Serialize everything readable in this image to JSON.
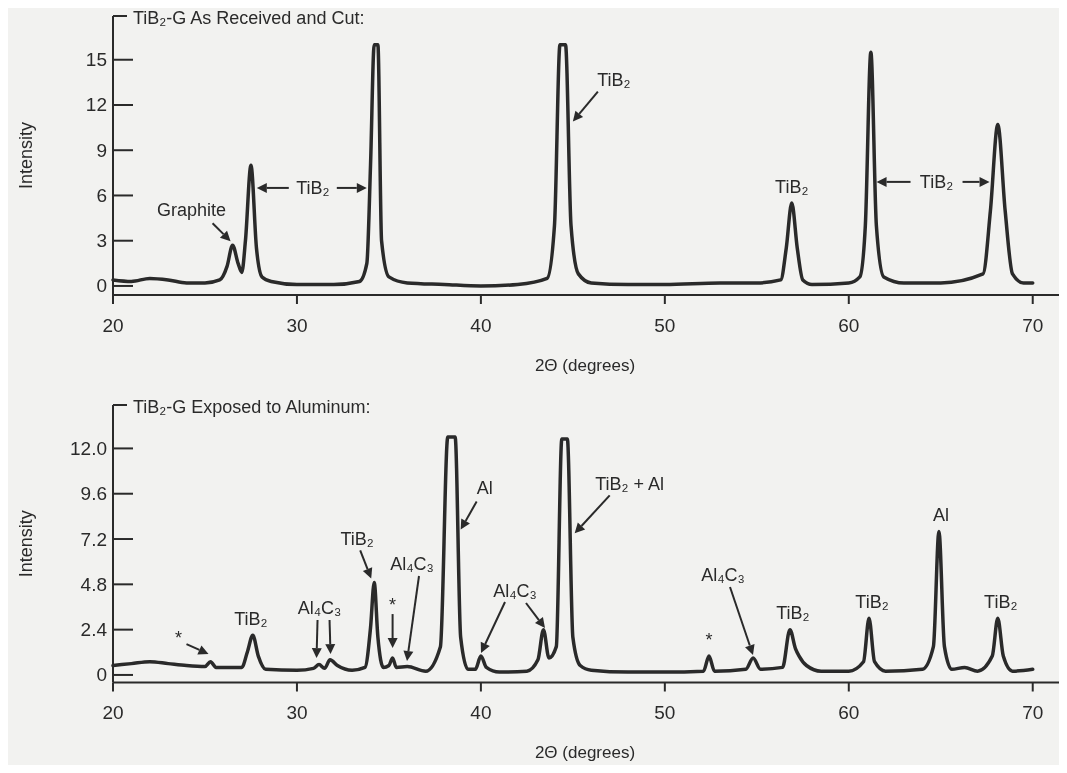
{
  "chart_data": [
    {
      "type": "line",
      "title": "TiB₂-G As Received and Cut:",
      "xlabel": "2Θ (degrees)",
      "ylabel": "Intensity",
      "xlim": [
        20,
        71.7
      ],
      "ylim": [
        -0.6,
        17.9
      ],
      "xticks": [
        20,
        30,
        40,
        50,
        60,
        70
      ],
      "yticks": [
        0,
        3,
        6,
        9,
        12,
        15
      ],
      "series": [
        {
          "color": "#2a2a2a",
          "x": [
            20,
            21,
            22,
            23,
            24,
            25,
            25.8,
            26.2,
            26.5,
            26.8,
            27.0,
            27.2,
            27.5,
            27.8,
            28.1,
            28.6,
            30,
            32,
            33.4,
            33.8,
            34.0,
            34.2,
            34.4,
            34.6,
            35.0,
            36,
            38,
            40,
            42,
            43.6,
            44.0,
            44.3,
            44.6,
            44.9,
            45.3,
            46,
            48,
            50,
            53,
            55,
            56.3,
            56.6,
            56.9,
            57.2,
            57.5,
            58,
            60,
            60.6,
            60.9,
            61.2,
            61.5,
            61.9,
            63,
            65,
            67.3,
            67.7,
            68.1,
            68.5,
            68.9,
            69.5,
            70
          ],
          "values": [
            0.4,
            0.3,
            0.5,
            0.4,
            0.2,
            0.2,
            0.4,
            1.3,
            2.7,
            1.5,
            0.9,
            3,
            8,
            2.5,
            0.6,
            0.3,
            0.1,
            0.1,
            0.3,
            1.5,
            8,
            16,
            16,
            3,
            0.6,
            0.2,
            0.1,
            0,
            0.1,
            0.5,
            4,
            16,
            16,
            4,
            0.8,
            0.2,
            0.1,
            0.1,
            0.2,
            0.2,
            0.4,
            2.5,
            5.5,
            2.5,
            0.4,
            0.1,
            0.2,
            0.6,
            4,
            15.5,
            4,
            0.6,
            0.2,
            0.2,
            0.8,
            5,
            10.7,
            5,
            0.8,
            0.2,
            0.2
          ]
        }
      ],
      "annotations": [
        {
          "text": "Graphite",
          "x": 26.5,
          "y": 2.7
        },
        {
          "text": "TiB₂",
          "x": 27.6,
          "y": 6.5
        },
        {
          "text": "TiB₂",
          "x": 45.0,
          "y": 10.9
        },
        {
          "text": "TiB₂",
          "x": 56.9,
          "y": 5.5
        },
        {
          "text": "TiB₂",
          "x": 61.4,
          "y": 6.9
        }
      ]
    },
    {
      "type": "line",
      "title": "TiB₂-G Exposed to Aluminum:",
      "xlabel": "2Θ (degrees)",
      "ylabel": "Intensity",
      "xlim": [
        20,
        71.7
      ],
      "ylim": [
        -0.4,
        14.3
      ],
      "xticks": [
        20,
        30,
        40,
        50,
        60,
        70
      ],
      "yticks": [
        0,
        2.4,
        4.8,
        7.2,
        9.6,
        {
          "value": 12,
          "label": "12.0"
        }
      ],
      "series": [
        {
          "color": "#2a2a2a",
          "x": [
            20,
            21,
            22,
            23,
            24,
            25,
            25.3,
            25.6,
            27,
            27.3,
            27.6,
            27.9,
            28.3,
            30,
            30.9,
            31.2,
            31.5,
            31.8,
            32.2,
            33,
            33.7,
            34.0,
            34.2,
            34.4,
            34.7,
            35.0,
            35.2,
            35.4,
            36.0,
            37,
            37.8,
            38.2,
            38.4,
            38.6,
            38.9,
            39.3,
            39.7,
            40.0,
            40.3,
            41,
            42.5,
            43.1,
            43.4,
            43.7,
            44.1,
            44.4,
            44.7,
            45.0,
            45.4,
            46,
            48,
            50,
            52.1,
            52.4,
            52.7,
            54.4,
            54.8,
            55.2,
            56.4,
            56.8,
            57.1,
            57.3,
            57.7,
            58.5,
            60,
            60.8,
            61.1,
            61.4,
            62,
            64,
            64.6,
            64.9,
            65.2,
            65.6,
            66.3,
            67,
            67.8,
            68.1,
            68.4,
            68.9,
            70
          ],
          "values": [
            0.5,
            0.6,
            0.7,
            0.6,
            0.5,
            0.45,
            0.7,
            0.4,
            0.4,
            1.2,
            2.1,
            1.0,
            0.3,
            0.25,
            0.35,
            0.55,
            0.35,
            0.8,
            0.5,
            0.25,
            0.4,
            2.5,
            4.9,
            2.0,
            0.4,
            0.5,
            0.9,
            0.4,
            0.45,
            0.2,
            1.5,
            12.6,
            12.6,
            12.6,
            2,
            0.3,
            0.3,
            1.0,
            0.4,
            0.15,
            0.2,
            0.8,
            2.4,
            0.9,
            1.5,
            12.5,
            12.5,
            2,
            0.5,
            0.25,
            0.15,
            0.15,
            0.2,
            1.0,
            0.2,
            0.3,
            0.9,
            0.3,
            0.4,
            2.4,
            1.4,
            1.0,
            0.5,
            0.2,
            0.2,
            0.7,
            3.0,
            0.7,
            0.2,
            0.3,
            1.5,
            7.6,
            1.5,
            0.3,
            0.4,
            0.2,
            1.0,
            3.0,
            1.0,
            0.2,
            0.3
          ]
        }
      ],
      "annotations": [
        {
          "text": "*",
          "x": 25.3,
          "y": 1.0
        },
        {
          "text": "TiB₂",
          "x": 27.6,
          "y": 2.1
        },
        {
          "text": "Al₄C₃",
          "x": 31.5,
          "y": 1.0
        },
        {
          "text": "TiB₂",
          "x": 34.2,
          "y": 4.9
        },
        {
          "text": "*",
          "x": 35.2,
          "y": 1.0
        },
        "Al₄C₃",
        {
          "text": "Al",
          "x": 38.9,
          "y": 7.7
        },
        "Al₄C₃",
        {
          "text": "TiB₂ + Al",
          "x": 45.1,
          "y": 7.5
        },
        {
          "text": "*",
          "x": 52.4,
          "y": 1.0
        },
        "Al₄C₃",
        {
          "text": "TiB₂",
          "x": 56.8,
          "y": 2.4
        },
        {
          "text": "TiB₂",
          "x": 61.1,
          "y": 3.0
        },
        {
          "text": "Al",
          "x": 64.9,
          "y": 7.6
        },
        {
          "text": "TiB₂",
          "x": 68.1,
          "y": 3.0
        }
      ]
    }
  ]
}
